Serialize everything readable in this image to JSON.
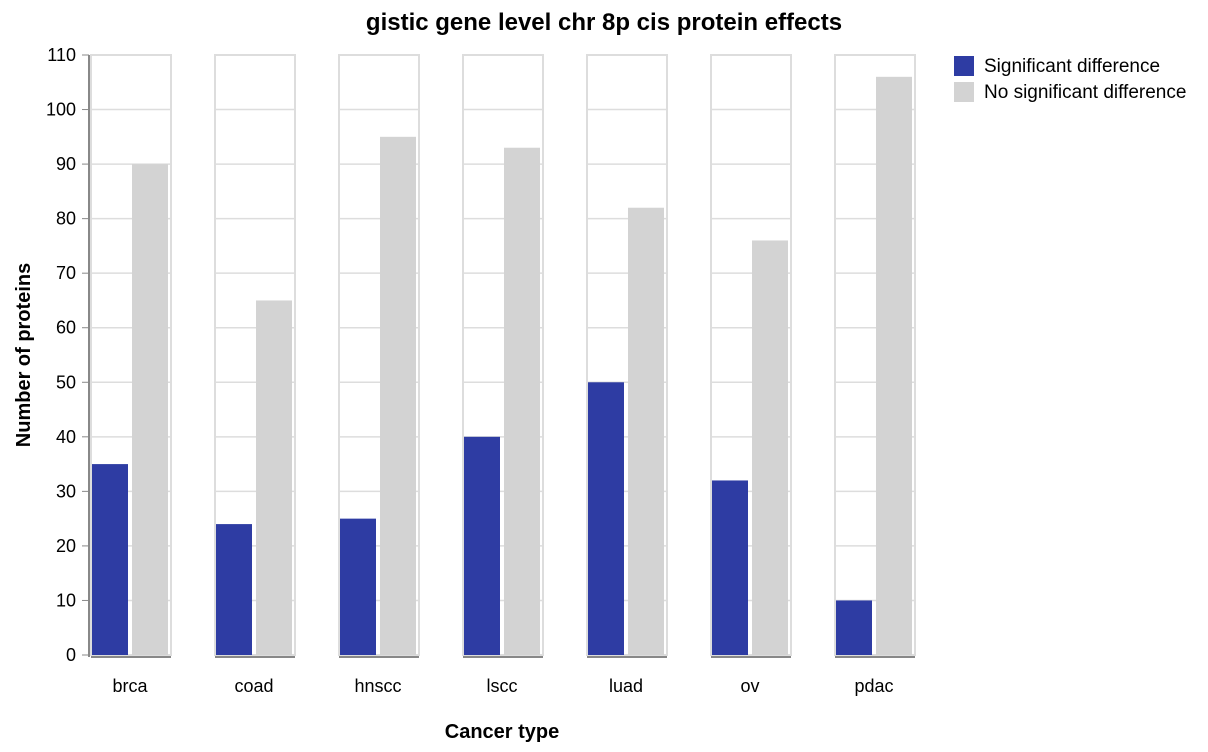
{
  "chart_data": {
    "type": "bar",
    "title": "gistic gene level chr 8p cis protein effects",
    "xlabel": "Cancer type",
    "ylabel": "Number of proteins",
    "categories": [
      "brca",
      "coad",
      "hnscc",
      "lscc",
      "luad",
      "ov",
      "pdac"
    ],
    "series": [
      {
        "name": "Significant difference",
        "color": "#2e3ca3",
        "values": [
          35,
          24,
          25,
          40,
          50,
          32,
          10
        ]
      },
      {
        "name": "No significant difference",
        "color": "#d3d3d3",
        "values": [
          90,
          65,
          95,
          93,
          82,
          76,
          106
        ]
      }
    ],
    "ylim": [
      0,
      110
    ],
    "yticks": [
      0,
      10,
      20,
      30,
      40,
      50,
      60,
      70,
      80,
      90,
      100,
      110
    ],
    "grid": true,
    "legend_position": "top-right"
  }
}
